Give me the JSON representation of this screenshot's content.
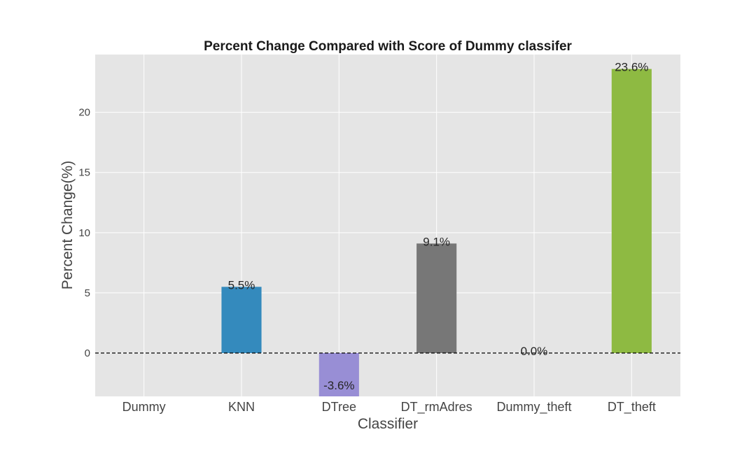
{
  "chart_data": {
    "type": "bar",
    "title": "Percent Change Compared with Score of Dummy classifer",
    "xlabel": "Classifier",
    "ylabel": "Percent Change(%)",
    "categories": [
      "Dummy",
      "KNN",
      "DTree",
      "DT_rmAdres",
      "Dummy_theft",
      "DT_theft"
    ],
    "values": [
      0.0,
      5.5,
      -3.6,
      9.1,
      0.0,
      23.6
    ],
    "data_labels": [
      "",
      "5.5%",
      "-3.6%",
      "9.1%",
      "0.0%",
      "23.6%"
    ],
    "colors": [
      "#348abd",
      "#348abd",
      "#988ed5",
      "#777777",
      "#fbc15e",
      "#8eba42"
    ],
    "ylim": [
      -3.6,
      24.8
    ],
    "yticks": [
      0,
      5,
      10,
      15,
      20
    ],
    "grid": true,
    "reference_line": {
      "y": 0,
      "style": "dashed",
      "color": "#000000"
    },
    "background": "#e5e5e5"
  }
}
